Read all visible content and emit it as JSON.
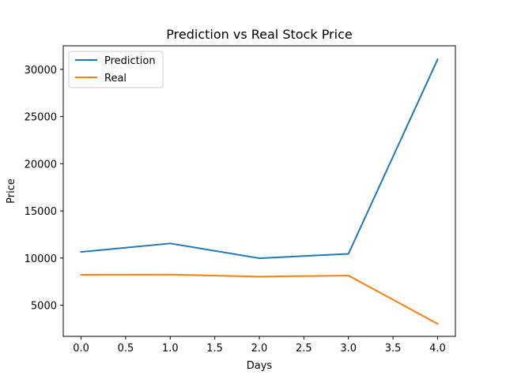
{
  "chart_data": {
    "type": "line",
    "title": "Prediction vs Real Stock Price",
    "xlabel": "Days",
    "ylabel": "Price",
    "xlim": [
      -0.2,
      4.2
    ],
    "ylim": [
      1700,
      32500
    ],
    "xticks": [
      0.0,
      0.5,
      1.0,
      1.5,
      2.0,
      2.5,
      3.0,
      3.5,
      4.0
    ],
    "xtick_labels": [
      "0.0",
      "0.5",
      "1.0",
      "1.5",
      "2.0",
      "2.5",
      "3.0",
      "3.5",
      "4.0"
    ],
    "yticks": [
      5000,
      10000,
      15000,
      20000,
      25000,
      30000
    ],
    "ytick_labels": [
      "5000",
      "10000",
      "15000",
      "20000",
      "25000",
      "30000"
    ],
    "grid": false,
    "legend_position": "top-left",
    "x": [
      0,
      1,
      2,
      3,
      4
    ],
    "series": [
      {
        "name": "Prediction",
        "color": "#1f77b4",
        "values": [
          10650,
          11550,
          9980,
          10450,
          31050
        ]
      },
      {
        "name": "Real",
        "color": "#ff7f0e",
        "values": [
          8230,
          8250,
          8030,
          8150,
          3030
        ]
      }
    ]
  }
}
